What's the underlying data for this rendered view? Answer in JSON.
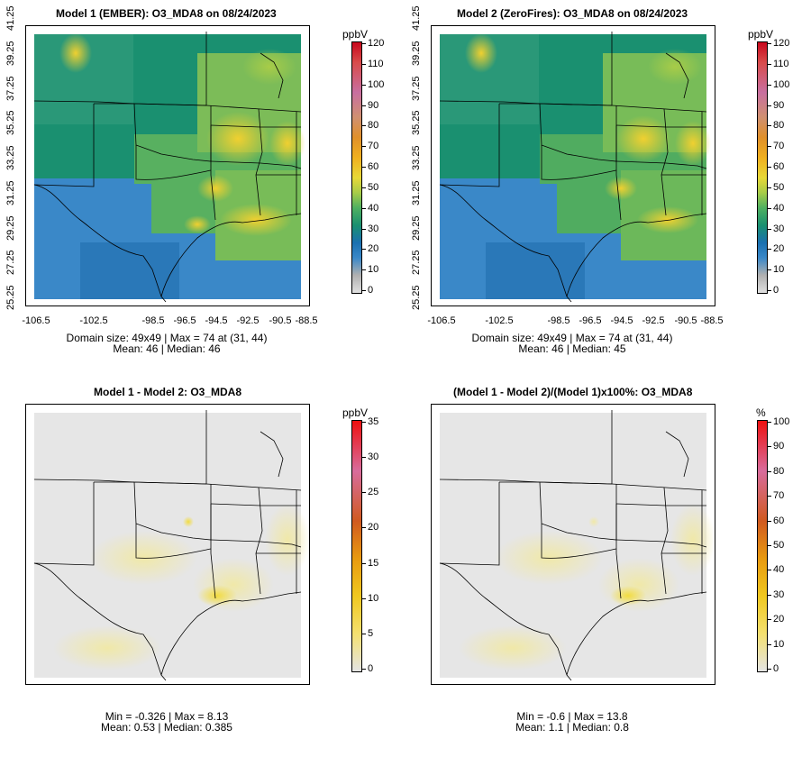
{
  "panels": [
    {
      "title": "Model 1 (EMBER): O3_MDA8 on 08/24/2023",
      "unit": "ppbV",
      "colorbar": {
        "palette": "viridis-ish",
        "ticks": [
          "120",
          "110",
          "100",
          "90",
          "80",
          "70",
          "60",
          "50",
          "40",
          "30",
          "20",
          "10",
          "0"
        ],
        "colors": [
          "#c8081c",
          "#d84b4b",
          "#c86fa0",
          "#d09070",
          "#e0902a",
          "#f0b020",
          "#e8d838",
          "#a8cc48",
          "#50b060",
          "#1a9070",
          "#1a70b0",
          "#3a88c8",
          "#b0b0b0",
          "#e0e0e0"
        ]
      },
      "x_ticks": [
        "-106.5",
        "-102.5",
        "-98.5",
        "-96.5",
        "-94.5",
        "-92.5",
        "-90.5",
        "-88.5"
      ],
      "y_ticks": [
        "25.25",
        "27.25",
        "29.25",
        "31.25",
        "33.25",
        "35.25",
        "37.25",
        "39.25",
        "41.25"
      ],
      "stats_line1": "Domain size: 49x49 | Max = 74 at (31, 44)",
      "stats_line2": "Mean: 46 |  Median: 46"
    },
    {
      "title": "Model 2 (ZeroFires): O3_MDA8 on 08/24/2023",
      "unit": "ppbV",
      "colorbar": {
        "ticks": [
          "120",
          "110",
          "100",
          "90",
          "80",
          "70",
          "60",
          "50",
          "40",
          "30",
          "20",
          "10",
          "0"
        ]
      },
      "x_ticks": [
        "-106.5",
        "-102.5",
        "-98.5",
        "-96.5",
        "-94.5",
        "-92.5",
        "-90.5",
        "-88.5"
      ],
      "y_ticks": [
        "25.25",
        "27.25",
        "29.25",
        "31.25",
        "33.25",
        "35.25",
        "37.25",
        "39.25",
        "41.25"
      ],
      "stats_line1": "Domain size: 49x49 | Max = 74 at (31, 44)",
      "stats_line2": "Mean: 46 |  Median: 45"
    },
    {
      "title": "Model 1 - Model 2: O3_MDA8",
      "unit": "ppbV",
      "colorbar": {
        "ticks": [
          "35",
          "30",
          "25",
          "20",
          "15",
          "10",
          "5",
          "0"
        ]
      },
      "stats_line1": "Min = -0.326 | Max = 8.13",
      "stats_line2": "Mean: 0.53 |  Median: 0.385"
    },
    {
      "title": "(Model 1 - Model 2)/(Model 1)x100%: O3_MDA8",
      "unit": "%",
      "colorbar": {
        "ticks": [
          "100",
          "90",
          "80",
          "70",
          "60",
          "50",
          "40",
          "30",
          "20",
          "10",
          "0"
        ]
      },
      "stats_line1": "Min = -0.6 | Max = 13.8",
      "stats_line2": "Mean: 1.1 |  Median: 0.8"
    }
  ]
}
